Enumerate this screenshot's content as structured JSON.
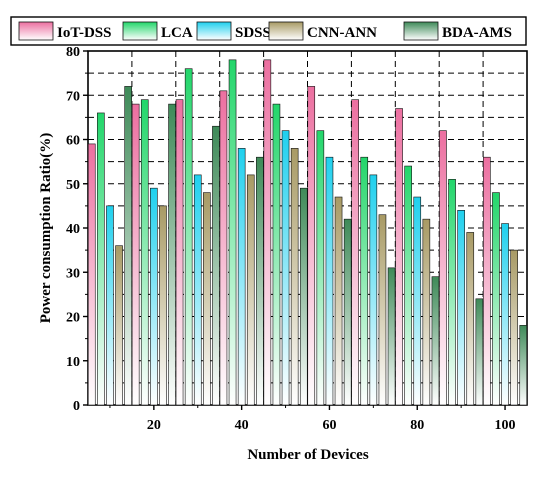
{
  "chart_data": {
    "type": "bar",
    "title": "",
    "xlabel": "Number  of Devices",
    "ylabel": "Power consumption Ratio(%)",
    "categories": [
      "10",
      "20",
      "30",
      "40",
      "50",
      "60",
      "70",
      "80",
      "90",
      "100"
    ],
    "x_tick_labels": [
      "20",
      "40",
      "60",
      "80",
      "100"
    ],
    "y_tick_labels": [
      "0",
      "10",
      "20",
      "30",
      "40",
      "50",
      "60",
      "70",
      "80"
    ],
    "ylim": [
      0,
      80
    ],
    "grid": "dashed",
    "legend_position": "top",
    "series": [
      {
        "name": "IoT-DSS",
        "color": "#ec6fa0",
        "values": [
          59,
          68,
          69,
          71,
          78,
          72,
          69,
          67,
          62,
          56
        ]
      },
      {
        "name": "LCA",
        "color": "#22d66a",
        "values": [
          66,
          69,
          76,
          78,
          68,
          62,
          56,
          54,
          51,
          48
        ]
      },
      {
        "name": "SDSS",
        "color": "#1fd0ee",
        "values": [
          45,
          49,
          52,
          58,
          62,
          56,
          52,
          47,
          44,
          41
        ]
      },
      {
        "name": "CNN-ANN",
        "color": "#a89a64",
        "values": [
          36,
          45,
          48,
          52,
          58,
          47,
          43,
          42,
          39,
          35
        ]
      },
      {
        "name": "BDA-AMS",
        "color": "#3e8a58",
        "values": [
          72,
          68,
          63,
          56,
          49,
          42,
          31,
          29,
          24,
          18
        ]
      }
    ]
  }
}
